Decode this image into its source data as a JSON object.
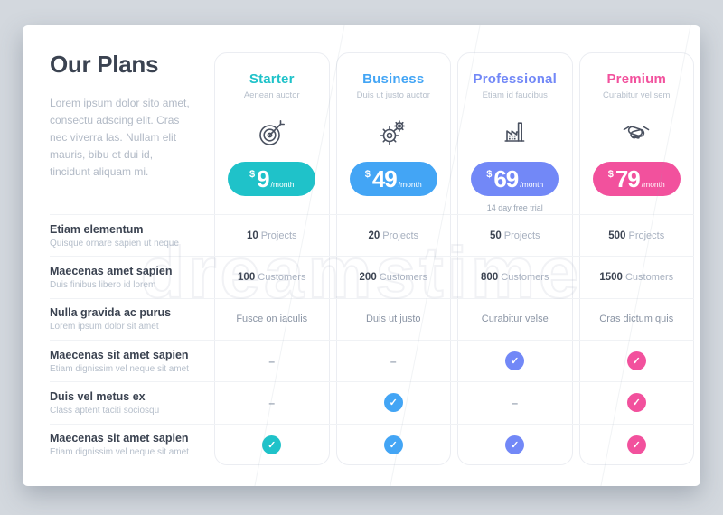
{
  "page": {
    "watermark_text": "dreamstime",
    "background": "#d3d8de"
  },
  "intro": {
    "title": "Our Plans",
    "description": "Lorem ipsum dolor sito amet, consectu adscing elit. Cras nec viverra las. Nullam elit mauris, bibu et dui id, tincidunt aliquam mi."
  },
  "plans": [
    {
      "name": "Starter",
      "tagline": "Aenean auctor",
      "icon": "target-icon",
      "accent": "#1fc2c9",
      "currency": "$",
      "price": "9",
      "period": "/month",
      "trial": ""
    },
    {
      "name": "Business",
      "tagline": "Duis ut justo auctor",
      "icon": "gears-icon",
      "accent": "#43a5f5",
      "currency": "$",
      "price": "49",
      "period": "/month",
      "trial": ""
    },
    {
      "name": "Professional",
      "tagline": "Etiam id faucibus",
      "icon": "factory-icon",
      "accent": "#7288f7",
      "currency": "$",
      "price": "69",
      "period": "/month",
      "trial": "14 day free trial"
    },
    {
      "name": "Premium",
      "tagline": "Curabitur vel sem",
      "icon": "handshake-icon",
      "accent": "#f2519d",
      "currency": "$",
      "price": "79",
      "period": "/month",
      "trial": ""
    }
  ],
  "features": [
    {
      "label": "Etiam elementum",
      "sublabel": "Quisque ornare sapien ut neque",
      "cells": [
        {
          "kind": "metric",
          "value": "10",
          "unit": "Projects"
        },
        {
          "kind": "metric",
          "value": "20",
          "unit": "Projects"
        },
        {
          "kind": "metric",
          "value": "50",
          "unit": "Projects"
        },
        {
          "kind": "metric",
          "value": "500",
          "unit": "Projects"
        }
      ]
    },
    {
      "label": "Maecenas amet sapien",
      "sublabel": "Duis finibus libero id lorem",
      "cells": [
        {
          "kind": "metric",
          "value": "100",
          "unit": "Customers"
        },
        {
          "kind": "metric",
          "value": "200",
          "unit": "Customers"
        },
        {
          "kind": "metric",
          "value": "800",
          "unit": "Customers"
        },
        {
          "kind": "metric",
          "value": "1500",
          "unit": "Customers"
        }
      ]
    },
    {
      "label": "Nulla gravida ac purus",
      "sublabel": "Lorem ipsum dolor sit amet",
      "cells": [
        {
          "kind": "text",
          "text": "Fusce on iaculis"
        },
        {
          "kind": "text",
          "text": "Duis ut justo"
        },
        {
          "kind": "text",
          "text": "Curabitur velse"
        },
        {
          "kind": "text",
          "text": "Cras dictum quis"
        }
      ]
    },
    {
      "label": "Maecenas sit amet sapien",
      "sublabel": "Etiam dignissim vel neque sit amet",
      "cells": [
        {
          "kind": "dash"
        },
        {
          "kind": "dash"
        },
        {
          "kind": "check"
        },
        {
          "kind": "check"
        }
      ]
    },
    {
      "label": "Duis vel metus ex",
      "sublabel": "Class aptent taciti sociosqu",
      "cells": [
        {
          "kind": "dash"
        },
        {
          "kind": "check"
        },
        {
          "kind": "dash"
        },
        {
          "kind": "check"
        }
      ]
    },
    {
      "label": "Maecenas sit amet sapien",
      "sublabel": "Etiam dignissim vel neque sit amet",
      "cells": [
        {
          "kind": "check"
        },
        {
          "kind": "check"
        },
        {
          "kind": "check"
        },
        {
          "kind": "check"
        }
      ]
    }
  ]
}
